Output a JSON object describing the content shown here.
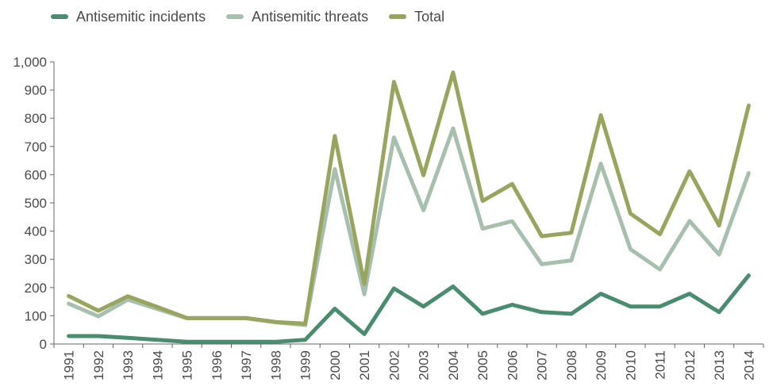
{
  "chart_data": {
    "type": "line",
    "categories": [
      "1991",
      "1992",
      "1993",
      "1994",
      "1995",
      "1996",
      "1997",
      "1998",
      "1999",
      "2000",
      "2001",
      "2002",
      "2003",
      "2004",
      "2005",
      "2006",
      "2007",
      "2008",
      "2009",
      "2010",
      "2011",
      "2012",
      "2013",
      "2014"
    ],
    "series": [
      {
        "name": "Antisemitic incidents",
        "color": "#4a8c6f",
        "values": [
          28,
          28,
          22,
          15,
          8,
          8,
          8,
          8,
          15,
          125,
          35,
          197,
          133,
          204,
          107,
          139,
          113,
          107,
          178,
          133,
          133,
          178,
          113,
          243
        ]
      },
      {
        "name": "Antisemitic threats",
        "color": "#a7c0ae",
        "values": [
          143,
          98,
          157,
          124,
          91,
          91,
          91,
          77,
          67,
          620,
          176,
          732,
          474,
          764,
          409,
          435,
          283,
          296,
          639,
          336,
          264,
          436,
          317,
          606
        ]
      },
      {
        "name": "Total",
        "color": "#97a55e",
        "values": [
          170,
          118,
          169,
          131,
          92,
          92,
          92,
          78,
          72,
          737,
          213,
          929,
          598,
          962,
          507,
          567,
          382,
          394,
          811,
          462,
          389,
          612,
          420,
          845
        ]
      }
    ],
    "ylim": [
      0,
      1000
    ],
    "yticks": [
      "0",
      "100",
      "200",
      "300",
      "400",
      "500",
      "600",
      "700",
      "800",
      "900",
      "1,000"
    ],
    "legend_position": "top-left",
    "grid": false
  }
}
